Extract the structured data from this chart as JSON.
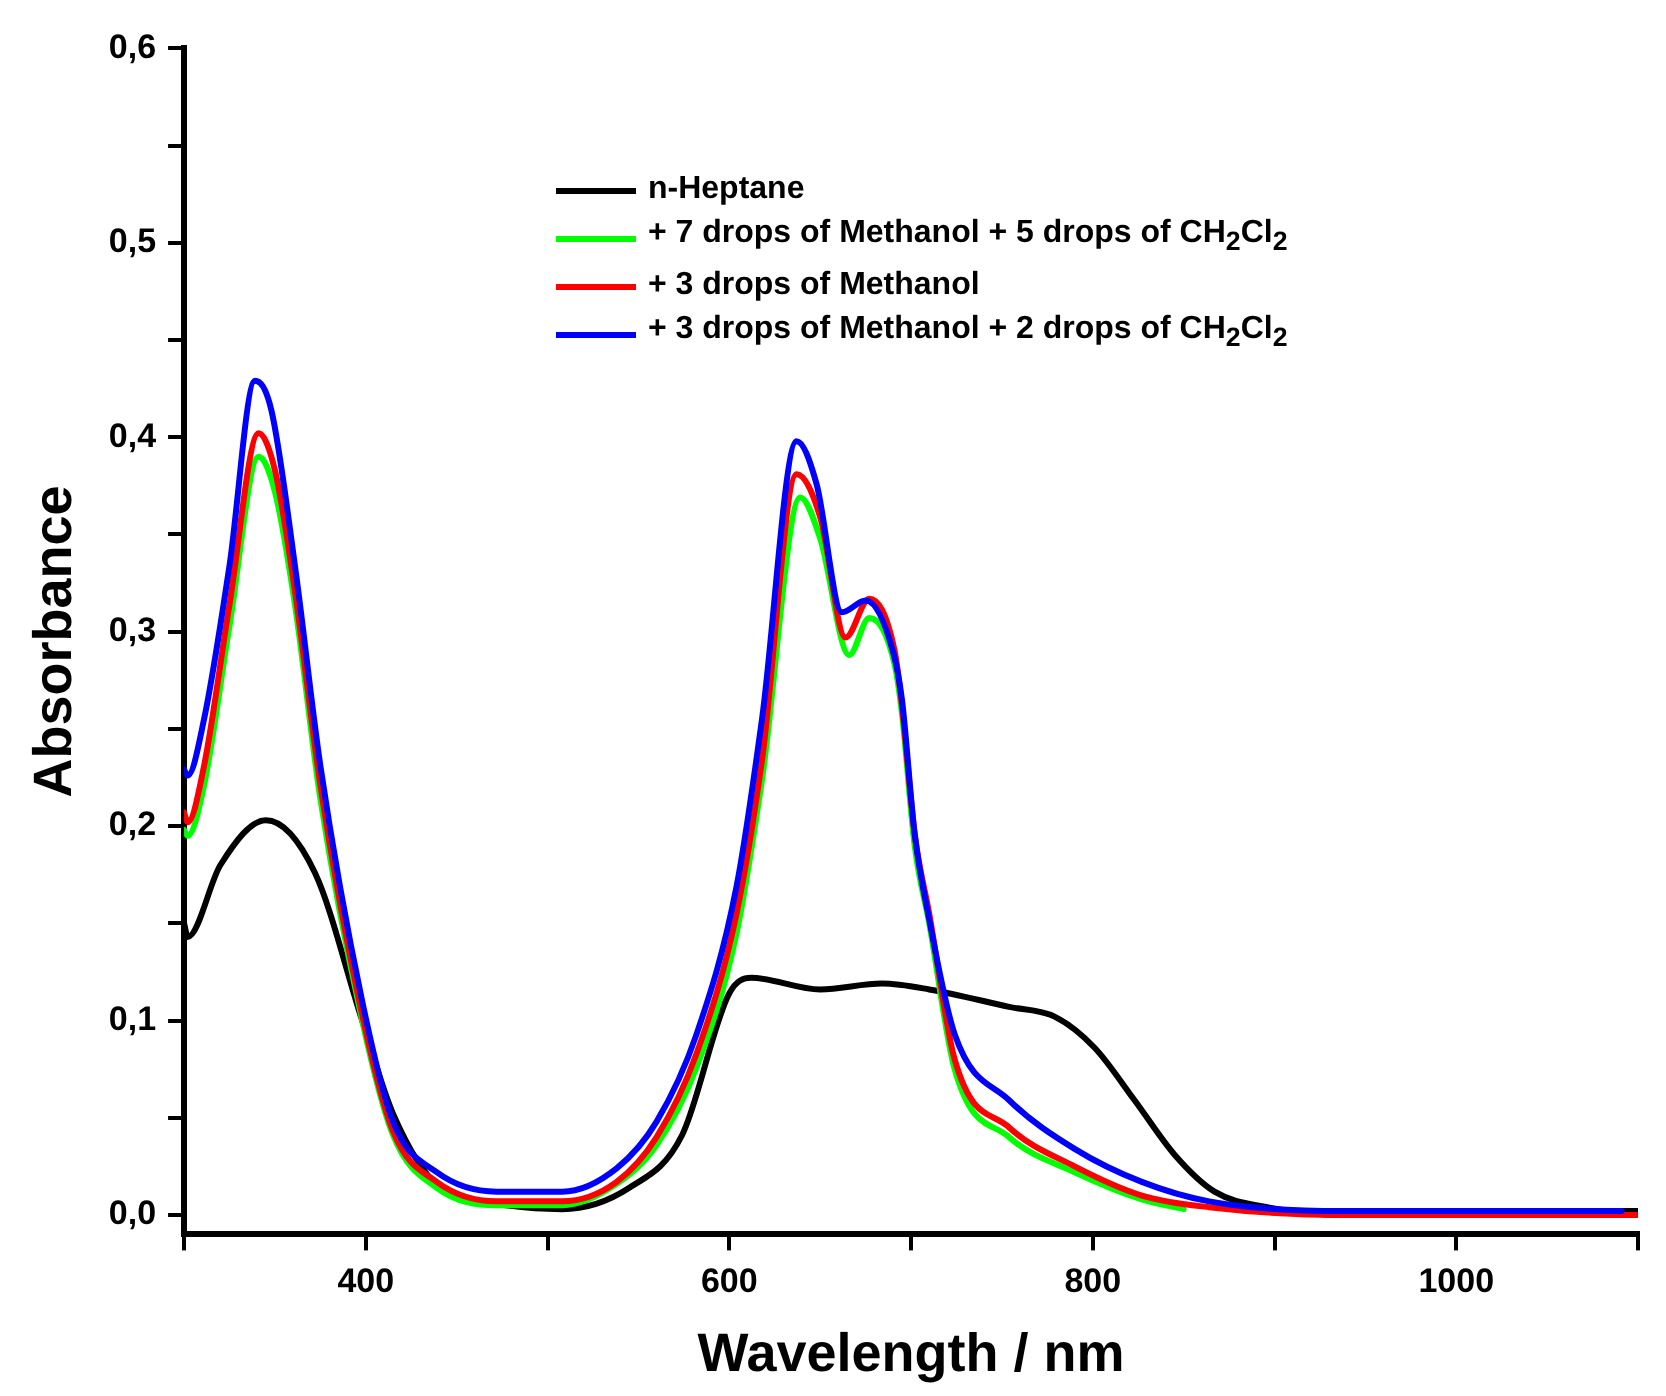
{
  "chart_data": {
    "type": "line",
    "xlabel": "Wavelength / nm",
    "ylabel": "Absorbance",
    "xlim": [
      300,
      1100
    ],
    "ylim": [
      -0.01,
      0.6
    ],
    "xticks": [
      {
        "value": 300,
        "label": null
      },
      400,
      {
        "value": 500,
        "label": null
      },
      600,
      {
        "value": 700,
        "label": null
      },
      800,
      {
        "value": 900,
        "label": null
      },
      1000,
      {
        "value": 1100,
        "label": null
      }
    ],
    "yticks": [
      {
        "value": 0,
        "label": "0,0"
      },
      {
        "value": 0.05,
        "label": null
      },
      {
        "value": 0.1,
        "label": "0,1"
      },
      {
        "value": 0.15,
        "label": null
      },
      {
        "value": 0.2,
        "label": "0,2"
      },
      {
        "value": 0.25,
        "label": null
      },
      {
        "value": 0.3,
        "label": "0,3"
      },
      {
        "value": 0.35,
        "label": null
      },
      {
        "value": 0.4,
        "label": "0,4"
      },
      {
        "value": 0.45,
        "label": null
      },
      {
        "value": 0.5,
        "label": "0,5"
      },
      {
        "value": 0.55,
        "label": null
      },
      {
        "value": 0.6,
        "label": "0,6"
      }
    ],
    "grid": false,
    "legend": "top right",
    "marker": "none",
    "line_style": "solid",
    "series": [
      {
        "name": "n-Heptane",
        "color": "#000000",
        "x": [
          300,
          302,
          320,
          345,
          372,
          398,
          415,
          441,
          477,
          508,
          545,
          574,
          600,
          612,
          650,
          684,
          710,
          754,
          779,
          801,
          823,
          845,
          867,
          896,
          937,
          1000,
          1100
        ],
        "values": [
          0.15,
          0.143,
          0.18,
          0.203,
          0.176,
          0.1,
          0.052,
          0.014,
          0.005,
          0.003,
          0.014,
          0.041,
          0.114,
          0.122,
          0.116,
          0.119,
          0.116,
          0.107,
          0.102,
          0.086,
          0.059,
          0.031,
          0.012,
          0.004,
          0,
          0.002,
          0.002
        ]
      },
      {
        "name": "+ 7 drops of Methanol + 5 drops of CH$_{2}$Cl$_{2}$",
        "color": "#00ff00",
        "x": [
          300,
          302,
          311,
          325,
          341,
          350,
          361,
          375,
          398,
          415,
          439,
          472,
          508,
          538,
          560,
          582,
          604,
          618,
          639,
          650,
          666,
          677,
          691,
          695,
          702,
          710,
          724,
          754,
          790,
          827,
          850
        ],
        "values": [
          0.198,
          0.195,
          0.221,
          0.303,
          0.39,
          0.372,
          0.314,
          0.214,
          0.1,
          0.041,
          0.014,
          0.005,
          0.005,
          0.016,
          0.036,
          0.076,
          0.145,
          0.224,
          0.369,
          0.348,
          0.288,
          0.307,
          0.283,
          0.258,
          0.19,
          0.15,
          0.075,
          0.04,
          0.022,
          0.008,
          0.003
        ]
      },
      {
        "name": "+ 3 drops of Methanol",
        "color": "#ff0000",
        "x": [
          300,
          302,
          311,
          325,
          341,
          350,
          361,
          375,
          398,
          415,
          439,
          472,
          508,
          538,
          560,
          582,
          604,
          618,
          637,
          650,
          664,
          677,
          691,
          695,
          702,
          710,
          724,
          754,
          790,
          827,
          864,
          937,
          1000,
          1100
        ],
        "values": [
          0.207,
          0.202,
          0.231,
          0.314,
          0.402,
          0.383,
          0.321,
          0.221,
          0.103,
          0.043,
          0.017,
          0.007,
          0.007,
          0.017,
          0.04,
          0.083,
          0.155,
          0.234,
          0.381,
          0.359,
          0.297,
          0.317,
          0.29,
          0.262,
          0.196,
          0.155,
          0.08,
          0.045,
          0.025,
          0.01,
          0.004,
          0,
          0,
          0
        ]
      },
      {
        "name": "+ 3 drops of Methanol + 2 drops of CH$_{2}$Cl$_{2}$",
        "color": "#0000ff",
        "x": [
          300,
          302,
          311,
          325,
          339,
          348,
          361,
          375,
          398,
          415,
          439,
          472,
          508,
          538,
          560,
          582,
          604,
          618,
          637,
          648,
          662,
          675,
          690,
          695,
          702,
          710,
          724,
          754,
          790,
          827,
          864,
          937,
          1000,
          1091
        ],
        "values": [
          0.229,
          0.226,
          0.255,
          0.334,
          0.429,
          0.414,
          0.334,
          0.231,
          0.11,
          0.048,
          0.022,
          0.012,
          0.012,
          0.024,
          0.048,
          0.093,
          0.169,
          0.255,
          0.398,
          0.376,
          0.31,
          0.316,
          0.29,
          0.265,
          0.196,
          0.152,
          0.093,
          0.059,
          0.034,
          0.017,
          0.007,
          0.002,
          0.002,
          0.002
        ]
      }
    ]
  }
}
